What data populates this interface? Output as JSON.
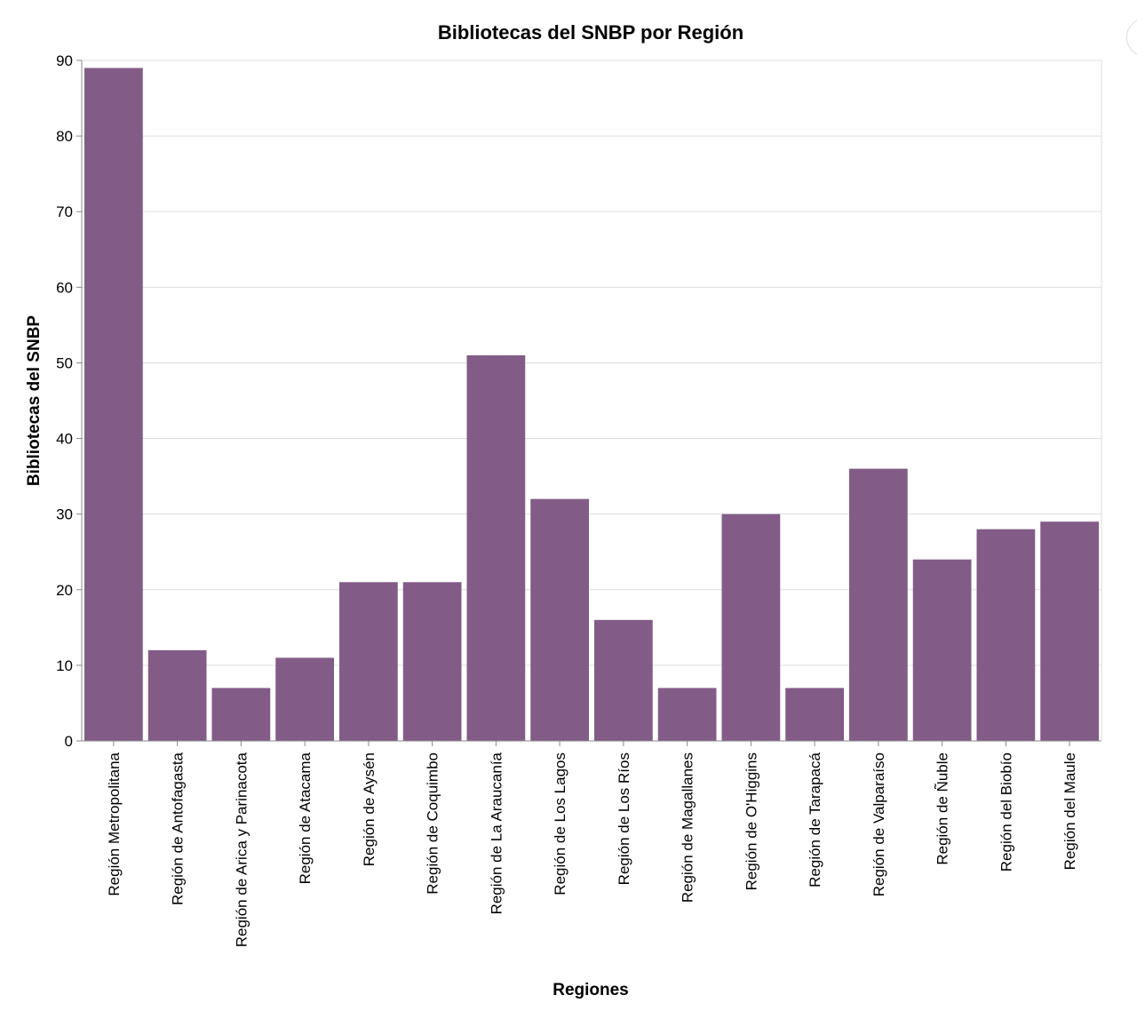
{
  "chart_data": {
    "type": "bar",
    "title": "Bibliotecas del SNBP por Región",
    "xlabel": "Regiones",
    "ylabel": "Bibliotecas del SNBP",
    "ylim": [
      0,
      90
    ],
    "yticks": [
      0,
      10,
      20,
      30,
      40,
      50,
      60,
      70,
      80,
      90
    ],
    "grid": true,
    "bar_color": "#825c87",
    "categories": [
      "Región Metropolitana",
      "Región de Antofagasta",
      "Región de Arica y Parinacota",
      "Región de Atacama",
      "Región de Aysén",
      "Región de Coquimbo",
      "Región de La Araucanía",
      "Región de Los Lagos",
      "Región de Los Ríos",
      "Región de Magallanes",
      "Región de O'Higgins",
      "Región de Tarapacá",
      "Región de Valparaíso",
      "Región de Ñuble",
      "Región del Biobío",
      "Región del Maule"
    ],
    "values": [
      89,
      12,
      7,
      11,
      21,
      21,
      51,
      32,
      16,
      7,
      30,
      7,
      36,
      24,
      28,
      29
    ]
  }
}
